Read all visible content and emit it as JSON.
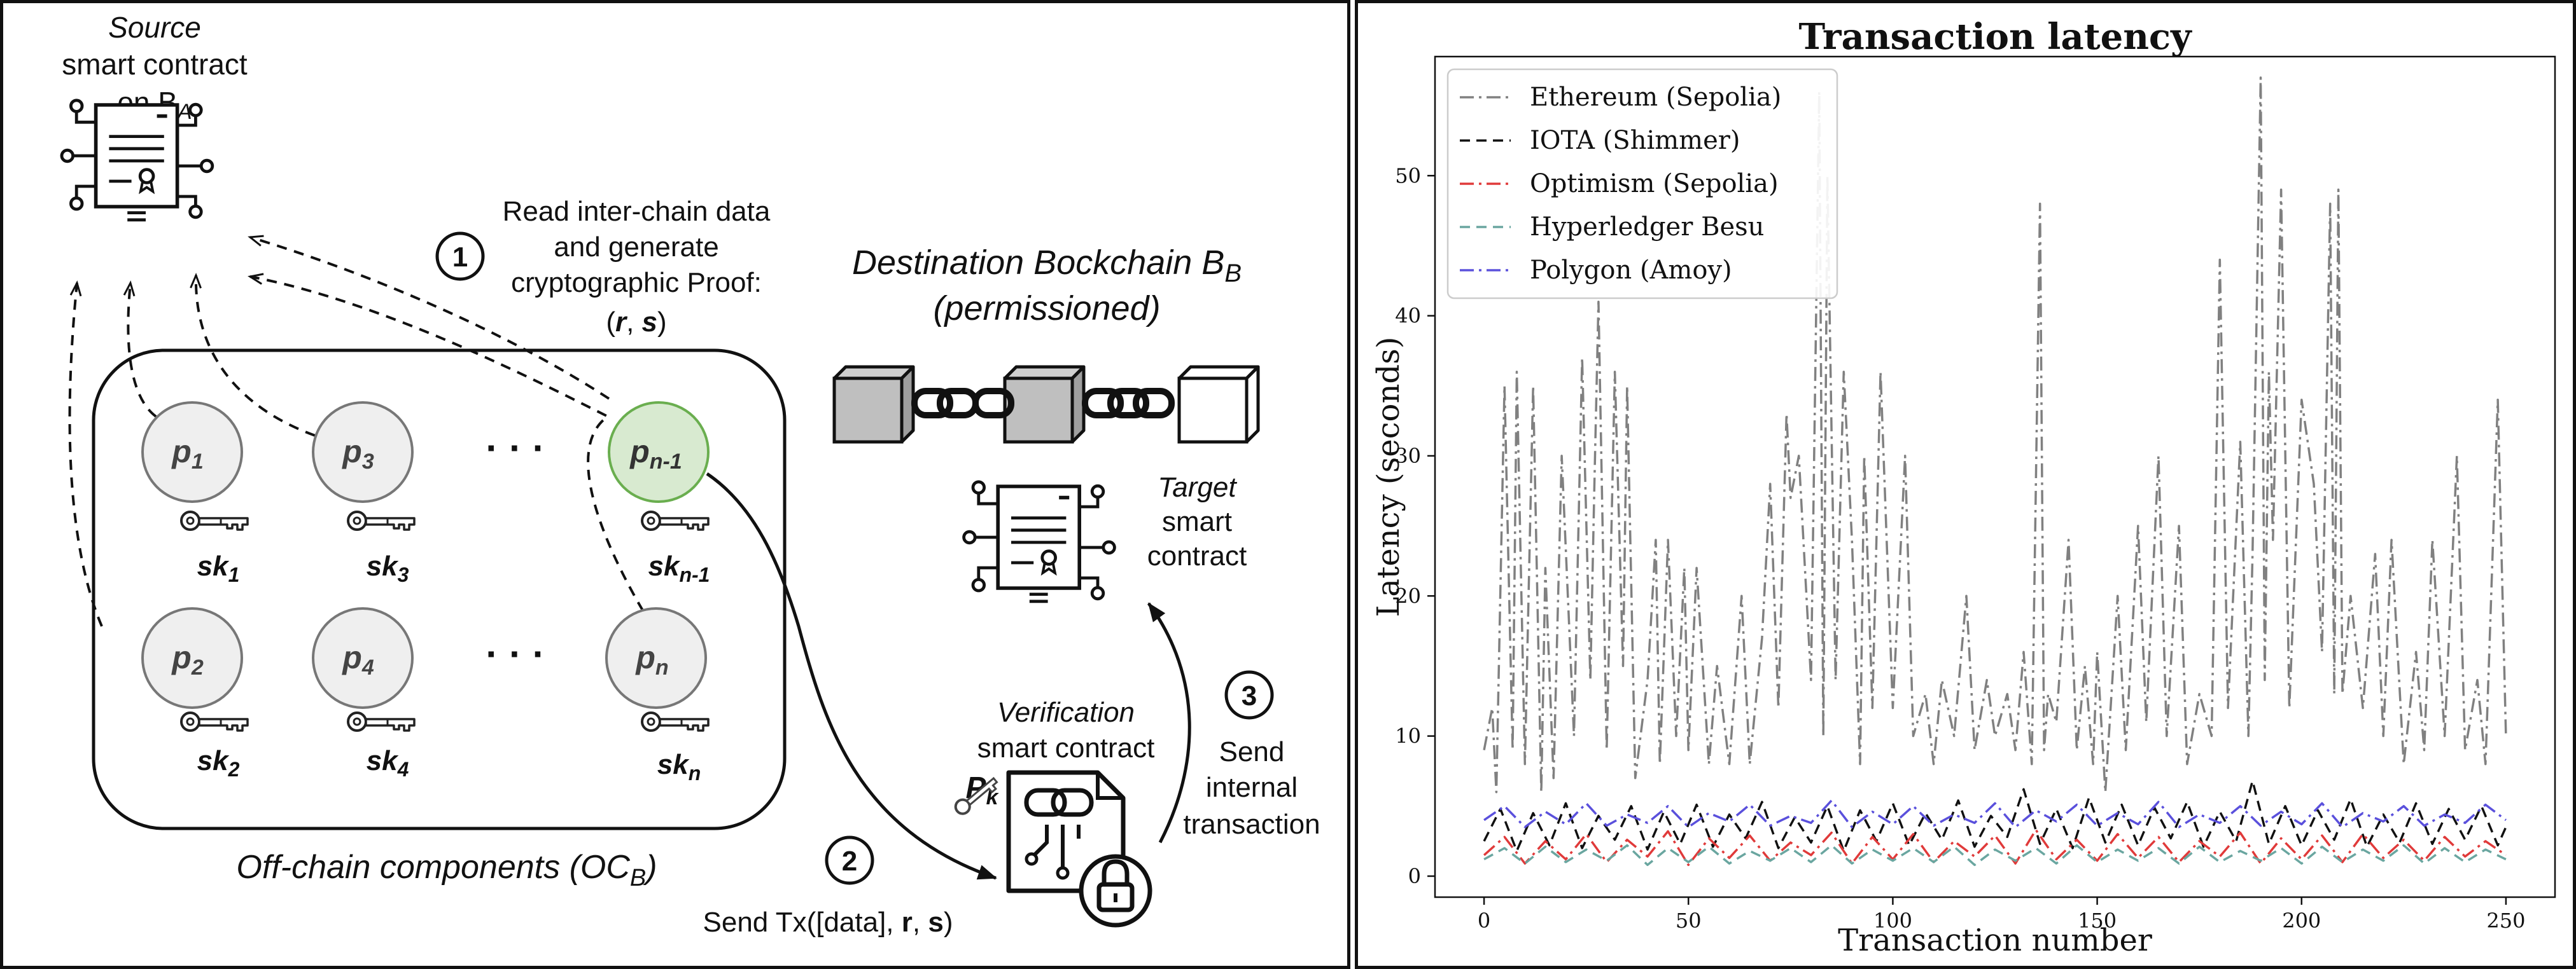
{
  "diagram": {
    "source": {
      "line1": "Source",
      "line2": "smart contract",
      "line3_prefix": "on B",
      "line3_sub": "A"
    },
    "step1": {
      "number": "1",
      "line1": "Read inter-chain data",
      "line2": "and generate",
      "line3": "cryptographic Proof:",
      "proof_open": "(",
      "proof_r": "r",
      "proof_sep": ", ",
      "proof_s": "s",
      "proof_close": ")"
    },
    "destination": {
      "line1_prefix": "Destination Bockchain B",
      "line1_sub": "B",
      "line2": "(permissioned)"
    },
    "target": {
      "line1": "Target",
      "line2": "smart",
      "line3": "contract"
    },
    "verification": {
      "line1": "Verification",
      "line2": "smart contract",
      "pk_main": "P",
      "pk_sub": "k"
    },
    "step2": {
      "number": "2",
      "text_prefix": "Send Tx([data], ",
      "text_r": "r",
      "text_sep": ", ",
      "text_s": "s",
      "text_suffix": ")"
    },
    "step3": {
      "number": "3",
      "line1": "Send",
      "line2": "internal",
      "line3": "transaction"
    },
    "offchain": {
      "label_prefix": "Off-chain components (OC",
      "label_sub": "B",
      "label_suffix": ")"
    },
    "nodes": {
      "p1": {
        "main": "p",
        "sub": "1"
      },
      "p2": {
        "main": "p",
        "sub": "2"
      },
      "p3": {
        "main": "p",
        "sub": "3"
      },
      "p4": {
        "main": "p",
        "sub": "4"
      },
      "pn1": {
        "main": "p",
        "sub": "n-1"
      },
      "pn": {
        "main": "p",
        "sub": "n"
      }
    },
    "keys": {
      "sk1": {
        "main": "sk",
        "sub": "1"
      },
      "sk2": {
        "main": "sk",
        "sub": "2"
      },
      "sk3": {
        "main": "sk",
        "sub": "3"
      },
      "sk4": {
        "main": "sk",
        "sub": "4"
      },
      "skn1": {
        "main": "sk",
        "sub": "n-1"
      },
      "skn": {
        "main": "sk",
        "sub": "n"
      }
    },
    "ellipsis": "· · ·",
    "colors": {
      "node_fill": "#efefef",
      "highlight_fill": "#d8ead0",
      "highlight_stroke": "#6aae4f",
      "block_gray": "#cccccc"
    }
  },
  "chart_data": {
    "type": "line",
    "title": "Transaction latency",
    "xlabel": "Transaction number",
    "ylabel": "Latency (seconds)",
    "xlim": [
      -12,
      262
    ],
    "ylim": [
      -1.5,
      58.5
    ],
    "xticks": [
      0,
      50,
      100,
      150,
      200,
      250
    ],
    "yticks": [
      0,
      10,
      20,
      30,
      40,
      50
    ],
    "grid": false,
    "legend_position": "top-left",
    "series": [
      {
        "name": "Ethereum (Sepolia)",
        "color": "#808080",
        "dash": "dashdot",
        "x": [
          0,
          2,
          3,
          5,
          7,
          8,
          10,
          12,
          14,
          15,
          17,
          19,
          22,
          24,
          26,
          27,
          28,
          30,
          32,
          34,
          35,
          37,
          40,
          42,
          43,
          45,
          47,
          49,
          50,
          52,
          55,
          57,
          60,
          63,
          65,
          68,
          70,
          72,
          74,
          75,
          77,
          80,
          82,
          83,
          84,
          86,
          88,
          90,
          92,
          93,
          95,
          97,
          100,
          103,
          105,
          108,
          110,
          112,
          115,
          118,
          120,
          123,
          125,
          128,
          130,
          132,
          134,
          136,
          137,
          138,
          140,
          143,
          145,
          147,
          149,
          150,
          152,
          155,
          157,
          160,
          162,
          165,
          167,
          170,
          172,
          175,
          178,
          180,
          182,
          185,
          187,
          188,
          190,
          191,
          192,
          193,
          195,
          197,
          200,
          203,
          205,
          207,
          208,
          209,
          210,
          212,
          215,
          218,
          220,
          222,
          225,
          228,
          230,
          232,
          235,
          238,
          240,
          243,
          245,
          248,
          250
        ],
        "y": [
          9,
          12,
          6,
          35,
          9,
          36,
          8,
          35,
          6,
          22,
          7,
          30,
          10,
          37,
          14,
          28,
          41,
          9,
          36,
          15,
          35,
          7,
          14,
          24,
          8,
          24,
          10,
          22,
          9,
          22,
          8,
          15,
          8,
          20,
          8,
          17,
          28,
          12,
          33,
          27,
          30,
          14,
          56,
          10,
          50,
          14,
          36,
          24,
          8,
          30,
          12,
          36,
          12,
          30,
          10,
          13,
          8,
          14,
          10,
          20,
          9,
          14,
          10,
          13,
          9,
          16,
          8,
          48,
          9,
          13,
          11,
          24,
          9,
          15,
          8,
          16,
          6,
          20,
          9,
          25,
          11,
          30,
          10,
          25,
          8,
          13,
          10,
          44,
          12,
          31,
          10,
          23,
          57,
          14,
          36,
          24,
          49,
          12,
          34,
          28,
          16,
          48,
          13,
          49,
          13,
          20,
          12,
          23,
          10,
          24,
          8,
          16,
          9,
          24,
          10,
          30,
          9,
          14,
          8,
          34,
          10
        ]
      },
      {
        "name": "IOTA (Shimmer)",
        "color": "#111111",
        "dash": "dashed",
        "x": [
          0,
          4,
          8,
          12,
          16,
          20,
          24,
          28,
          32,
          36,
          40,
          44,
          48,
          52,
          56,
          60,
          64,
          68,
          72,
          76,
          80,
          84,
          88,
          92,
          96,
          100,
          104,
          108,
          112,
          116,
          120,
          124,
          128,
          132,
          136,
          140,
          144,
          148,
          152,
          156,
          160,
          164,
          168,
          172,
          176,
          180,
          184,
          188,
          192,
          196,
          200,
          204,
          208,
          212,
          216,
          220,
          224,
          228,
          232,
          236,
          240,
          244,
          248,
          250
        ],
        "y": [
          2.5,
          4.8,
          1.8,
          4.5,
          2.2,
          5.2,
          2.0,
          4.3,
          2.6,
          5.0,
          1.9,
          4.6,
          2.3,
          5.1,
          2.1,
          4.4,
          2.7,
          5.3,
          2.0,
          4.2,
          2.4,
          5.0,
          1.8,
          4.7,
          2.5,
          5.2,
          2.2,
          4.5,
          2.6,
          5.4,
          2.1,
          4.3,
          2.8,
          6.2,
          2.3,
          4.8,
          2.0,
          5.6,
          2.4,
          5.1,
          2.2,
          4.9,
          2.7,
          5.3,
          2.1,
          4.6,
          2.5,
          6.8,
          2.3,
          5.0,
          2.2,
          4.7,
          2.6,
          5.5,
          2.1,
          4.4,
          2.4,
          5.2,
          2.3,
          4.8,
          2.6,
          5.0,
          2.2,
          3.5
        ]
      },
      {
        "name": "Optimism (Sepolia)",
        "color": "#e03a3a",
        "dash": "dashdot",
        "x": [
          0,
          5,
          10,
          15,
          20,
          25,
          30,
          35,
          40,
          45,
          50,
          55,
          60,
          65,
          70,
          75,
          80,
          85,
          90,
          95,
          100,
          105,
          110,
          115,
          120,
          125,
          130,
          135,
          140,
          145,
          150,
          155,
          160,
          165,
          170,
          175,
          180,
          185,
          190,
          195,
          200,
          205,
          210,
          215,
          220,
          225,
          230,
          235,
          240,
          245,
          250
        ],
        "y": [
          1.5,
          2.8,
          0.9,
          2.5,
          1.2,
          3.0,
          1.0,
          2.6,
          1.4,
          3.2,
          0.8,
          2.7,
          1.3,
          2.9,
          1.1,
          2.4,
          1.5,
          3.1,
          0.9,
          2.8,
          1.2,
          3.0,
          1.0,
          2.5,
          1.4,
          2.9,
          0.9,
          3.3,
          1.2,
          2.6,
          1.1,
          3.0,
          1.3,
          2.8,
          1.0,
          2.5,
          1.4,
          3.1,
          0.9,
          2.7,
          1.2,
          2.9,
          1.0,
          3.0,
          1.3,
          2.6,
          1.1,
          2.8,
          1.4,
          2.5,
          1.5
        ]
      },
      {
        "name": "Hyperledger Besu",
        "color": "#6aa6a0",
        "dash": "dashed",
        "x": [
          0,
          5,
          10,
          15,
          20,
          25,
          30,
          35,
          40,
          45,
          50,
          55,
          60,
          65,
          70,
          75,
          80,
          85,
          90,
          95,
          100,
          105,
          110,
          115,
          120,
          125,
          130,
          135,
          140,
          145,
          150,
          155,
          160,
          165,
          170,
          175,
          180,
          185,
          190,
          195,
          200,
          205,
          210,
          215,
          220,
          225,
          230,
          235,
          240,
          245,
          250
        ],
        "y": [
          1.2,
          2.0,
          0.9,
          2.1,
          1.0,
          1.9,
          1.1,
          2.2,
          0.8,
          2.0,
          1.0,
          2.1,
          0.9,
          1.8,
          1.1,
          2.0,
          1.0,
          2.2,
          0.9,
          1.9,
          1.1,
          2.0,
          1.0,
          2.1,
          0.8,
          1.9,
          1.1,
          2.0,
          0.9,
          2.2,
          1.0,
          1.9,
          1.1,
          2.0,
          0.9,
          2.1,
          1.0,
          1.8,
          1.1,
          2.0,
          0.9,
          2.1,
          1.0,
          1.9,
          1.1,
          2.2,
          0.9,
          2.0,
          1.0,
          1.9,
          1.2
        ]
      },
      {
        "name": "Polygon (Amoy)",
        "color": "#5a50dc",
        "dash": "dashdot",
        "x": [
          0,
          5,
          10,
          15,
          20,
          25,
          30,
          35,
          40,
          45,
          50,
          55,
          60,
          65,
          70,
          75,
          80,
          85,
          90,
          95,
          100,
          105,
          110,
          115,
          120,
          125,
          130,
          135,
          140,
          145,
          150,
          155,
          160,
          165,
          170,
          175,
          180,
          185,
          190,
          195,
          200,
          205,
          210,
          215,
          220,
          225,
          230,
          235,
          240,
          245,
          250
        ],
        "y": [
          4.0,
          5.0,
          3.5,
          4.6,
          3.7,
          5.2,
          3.6,
          4.4,
          3.8,
          5.0,
          3.5,
          4.5,
          3.9,
          5.1,
          3.6,
          4.3,
          3.8,
          5.4,
          3.5,
          4.6,
          3.7,
          5.0,
          3.6,
          4.4,
          3.8,
          5.2,
          3.5,
          4.7,
          3.9,
          5.1,
          3.6,
          4.5,
          3.7,
          5.3,
          3.5,
          4.4,
          3.8,
          5.0,
          3.6,
          4.6,
          3.7,
          5.2,
          3.5,
          4.5,
          3.9,
          5.0,
          3.6,
          4.4,
          3.8,
          5.1,
          4.0
        ]
      }
    ]
  }
}
